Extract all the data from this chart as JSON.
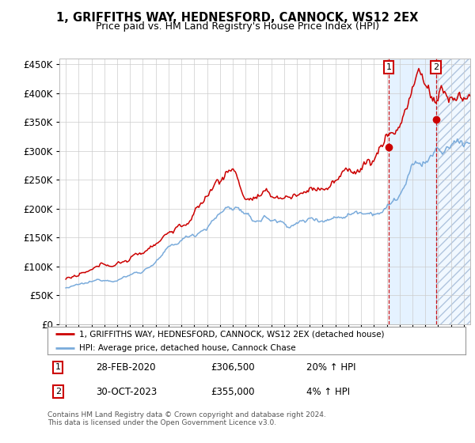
{
  "title": "1, GRIFFITHS WAY, HEDNESFORD, CANNOCK, WS12 2EX",
  "subtitle": "Price paid vs. HM Land Registry's House Price Index (HPI)",
  "legend_line1": "1, GRIFFITHS WAY, HEDNESFORD, CANNOCK, WS12 2EX (detached house)",
  "legend_line2": "HPI: Average price, detached house, Cannock Chase",
  "transaction1_date": "28-FEB-2020",
  "transaction1_price": "£306,500",
  "transaction1_hpi": "20% ↑ HPI",
  "transaction2_date": "30-OCT-2023",
  "transaction2_price": "£355,000",
  "transaction2_hpi": "4% ↑ HPI",
  "footer": "Contains HM Land Registry data © Crown copyright and database right 2024.\nThis data is licensed under the Open Government Licence v3.0.",
  "hpi_color": "#7aabdb",
  "price_color": "#cc0000",
  "marker_color": "#cc0000",
  "transaction1_x": 2020.15,
  "transaction2_x": 2023.83,
  "transaction1_y": 306500,
  "transaction2_y": 355000,
  "background_color": "#ffffff",
  "grid_color": "#cccccc",
  "ylim": [
    0,
    460000
  ],
  "xlim_start": 1994.5,
  "xlim_end": 2026.5,
  "highlight_start": 2020.15,
  "hatch_region_start": 2023.83,
  "hatch_region_end": 2026.5
}
